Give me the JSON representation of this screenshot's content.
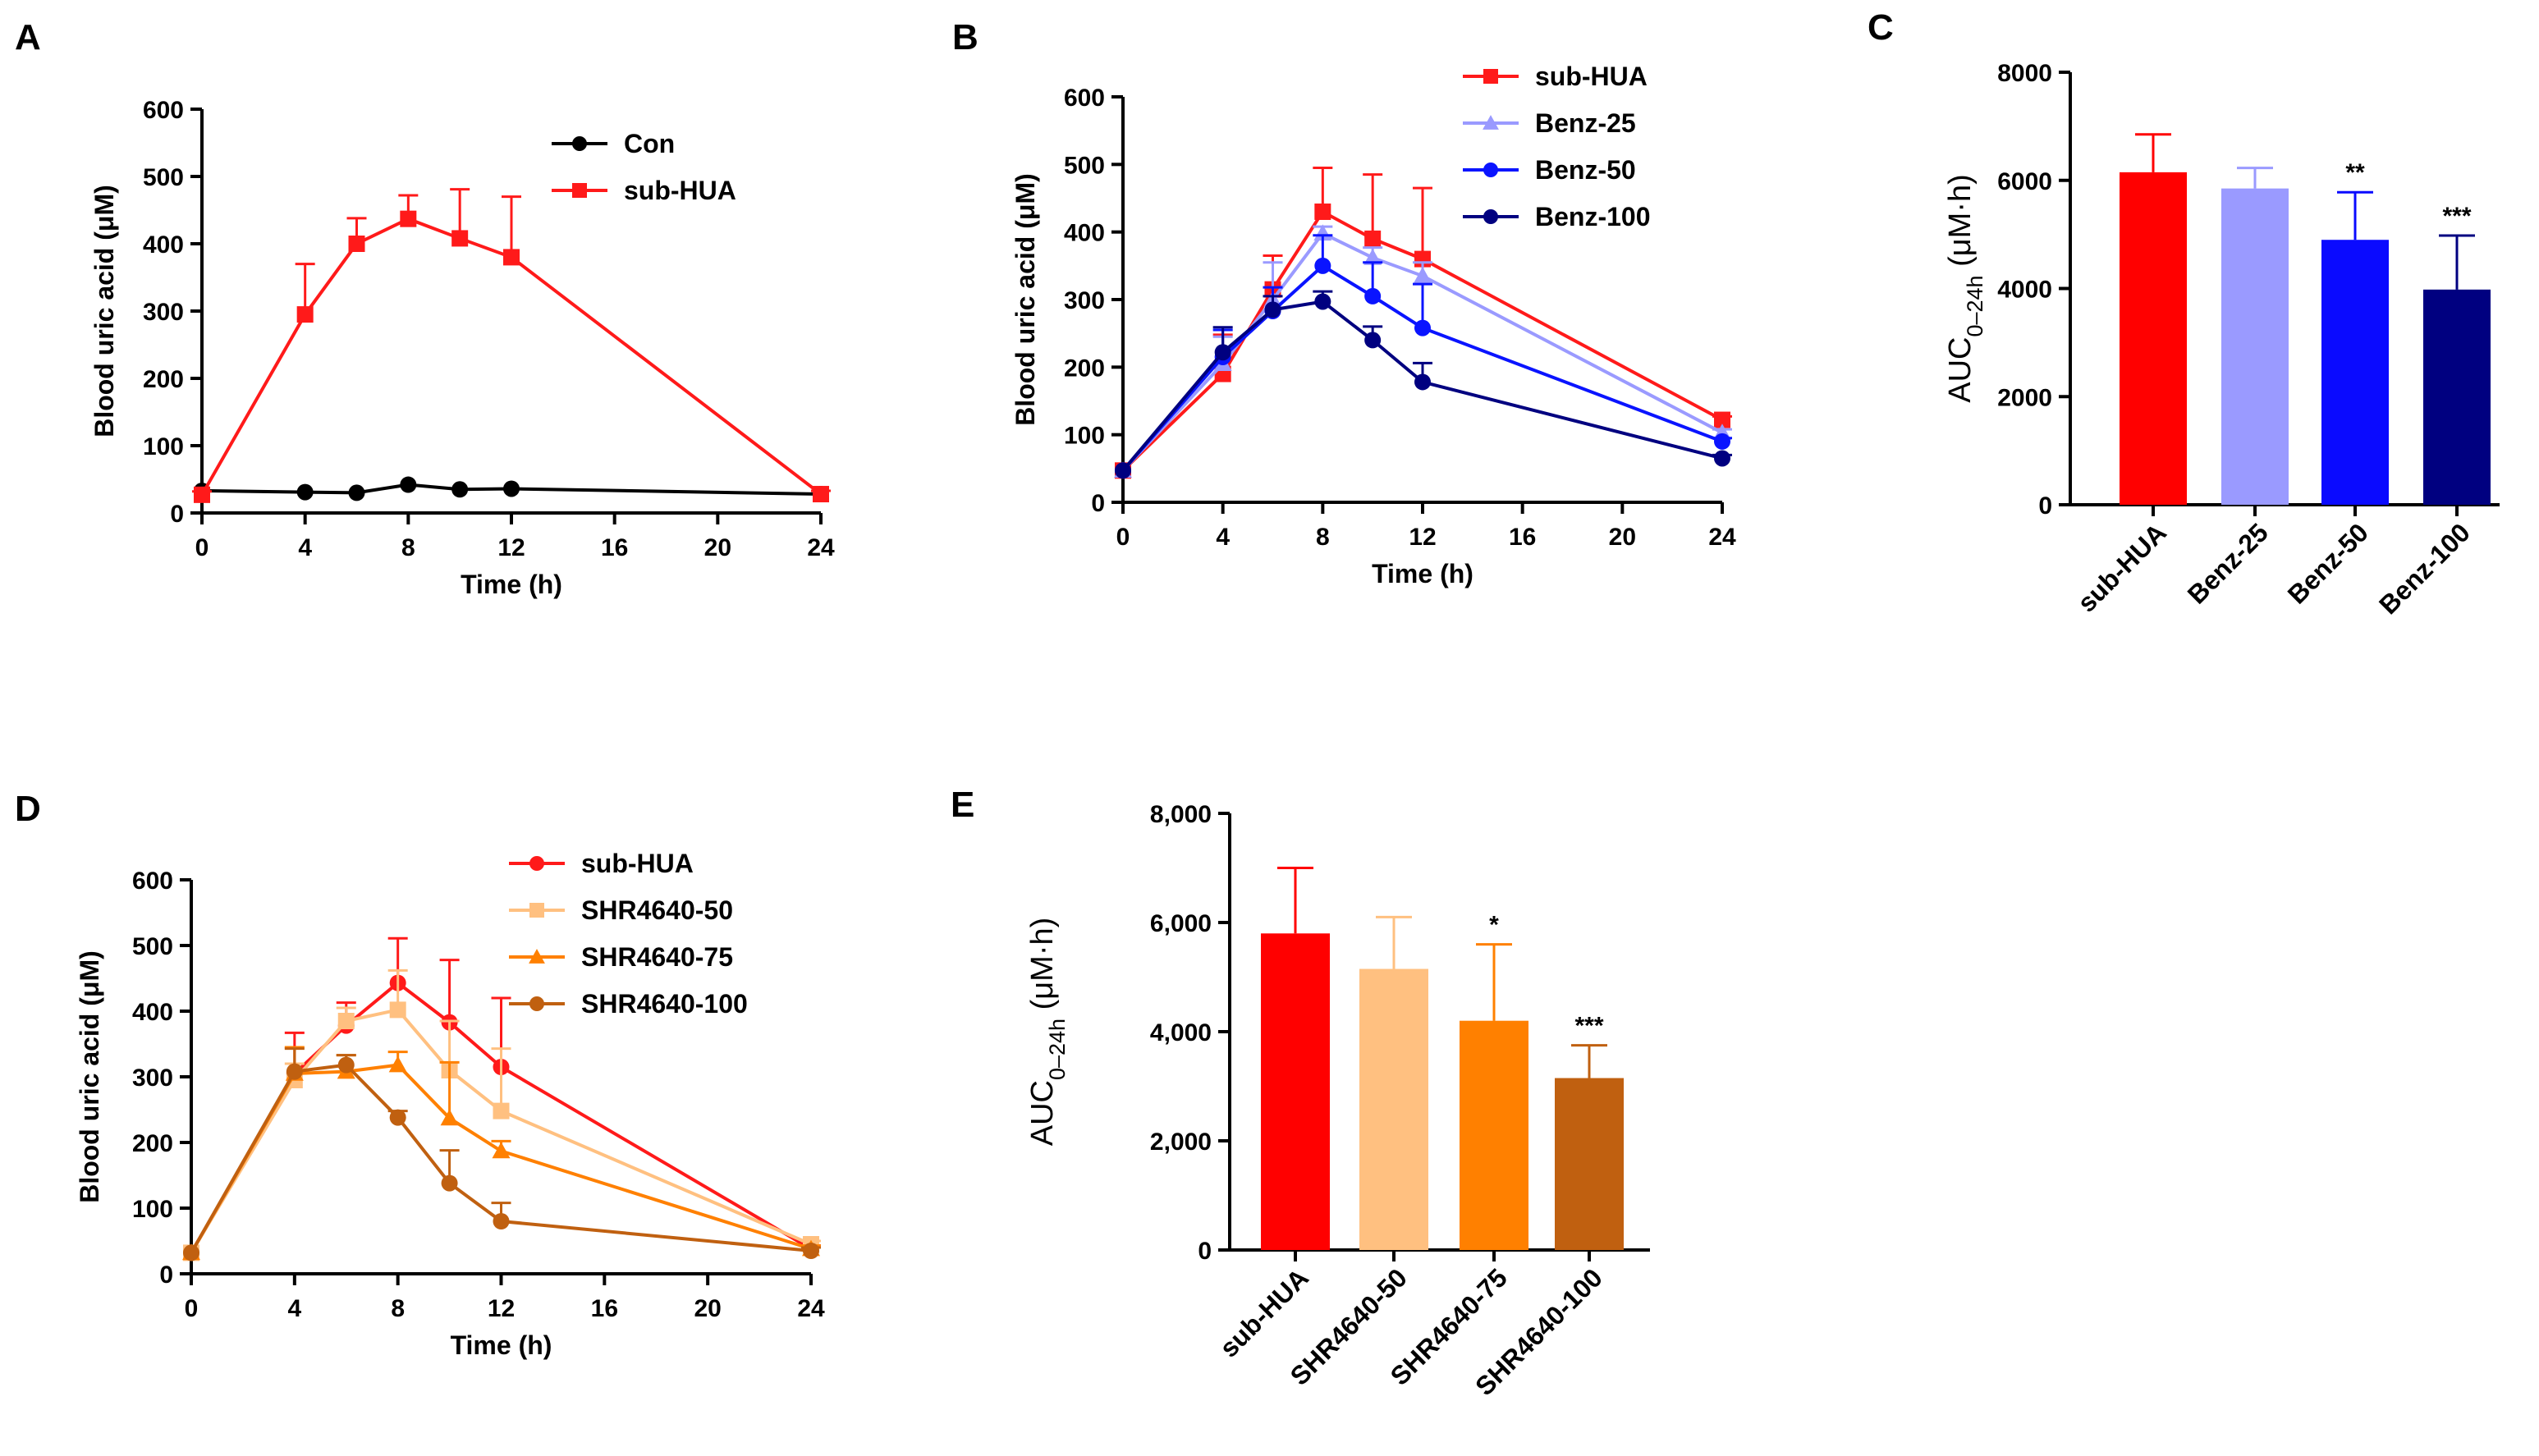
{
  "chart_data": [
    {
      "panel": "A",
      "type": "line",
      "xlabel": "Time (h)",
      "ylabel": "Blood uric acid (μM)",
      "xlim": [
        0,
        24
      ],
      "ylim": [
        0,
        600
      ],
      "xticks": [
        0,
        4,
        8,
        12,
        16,
        20,
        24
      ],
      "yticks": [
        0,
        100,
        200,
        300,
        400,
        500,
        600
      ],
      "legend_position": "top-right",
      "series": [
        {
          "name": "Con",
          "color": "#000000",
          "marker": "circle",
          "x": [
            0,
            4,
            6,
            8,
            10,
            12,
            24
          ],
          "y": [
            33,
            31,
            30,
            42,
            35,
            36,
            28
          ],
          "err": [
            3,
            3,
            3,
            4,
            3,
            3,
            3
          ]
        },
        {
          "name": "sub-HUA",
          "color": "#ff1a1a",
          "marker": "square",
          "x": [
            0,
            4,
            6,
            8,
            10,
            12,
            24
          ],
          "y": [
            27,
            295,
            400,
            437,
            408,
            380,
            28
          ],
          "err": [
            5,
            75,
            38,
            35,
            73,
            90,
            5
          ]
        }
      ]
    },
    {
      "panel": "B",
      "type": "line",
      "xlabel": "Time (h)",
      "ylabel": "Blood uric acid (μM)",
      "xlim": [
        0,
        24
      ],
      "ylim": [
        0,
        600
      ],
      "xticks": [
        0,
        4,
        8,
        12,
        16,
        20,
        24
      ],
      "yticks": [
        0,
        100,
        200,
        300,
        400,
        500,
        600
      ],
      "legend_position": "top-right",
      "series": [
        {
          "name": "sub-HUA",
          "color": "#ff1a1a",
          "marker": "square",
          "x": [
            0,
            4,
            6,
            8,
            10,
            12,
            24
          ],
          "y": [
            47,
            190,
            315,
            430,
            390,
            360,
            122
          ],
          "err": [
            3,
            58,
            50,
            65,
            95,
            105,
            5
          ]
        },
        {
          "name": "Benz-25",
          "color": "#9a9aff",
          "marker": "triangle",
          "x": [
            0,
            4,
            6,
            8,
            10,
            12,
            24
          ],
          "y": [
            47,
            205,
            300,
            398,
            362,
            335,
            103
          ],
          "err": [
            3,
            40,
            55,
            10,
            15,
            20,
            5
          ]
        },
        {
          "name": "Benz-50",
          "color": "#0a14ff",
          "marker": "circle",
          "x": [
            0,
            4,
            6,
            8,
            10,
            12,
            24
          ],
          "y": [
            47,
            215,
            283,
            350,
            305,
            258,
            90
          ],
          "err": [
            3,
            40,
            35,
            45,
            50,
            65,
            5
          ]
        },
        {
          "name": "Benz-100",
          "color": "#000080",
          "marker": "circle",
          "x": [
            0,
            4,
            6,
            8,
            10,
            12,
            24
          ],
          "y": [
            47,
            222,
            285,
            297,
            240,
            178,
            65
          ],
          "err": [
            3,
            37,
            20,
            15,
            20,
            28,
            5
          ]
        }
      ]
    },
    {
      "panel": "C",
      "type": "bar",
      "ylabel_main": "AUC",
      "ylabel_sub": "0–24h",
      "ylabel_unit": " (μM·h)",
      "ylim": [
        0,
        8000
      ],
      "yticks": [
        "0",
        "2000",
        "4000",
        "6000",
        "8000"
      ],
      "ytick_values": [
        0,
        2000,
        4000,
        6000,
        8000
      ],
      "categories": [
        "sub-HUA",
        "Benz-25",
        "Benz-50",
        "Benz-100"
      ],
      "values": [
        6150,
        5850,
        4900,
        3980
      ],
      "errors": [
        700,
        380,
        880,
        1000
      ],
      "colors": [
        "#ff0000",
        "#9a9aff",
        "#0a0aff",
        "#000080"
      ],
      "significance": [
        "",
        "",
        "**",
        "***"
      ]
    },
    {
      "panel": "D",
      "type": "line",
      "xlabel": "Time (h)",
      "ylabel": "Blood uric acid (μM)",
      "xlim": [
        0,
        24
      ],
      "ylim": [
        0,
        600
      ],
      "xticks": [
        0,
        4,
        8,
        12,
        16,
        20,
        24
      ],
      "yticks": [
        0,
        100,
        200,
        300,
        400,
        500,
        600
      ],
      "legend_position": "top-right",
      "series": [
        {
          "name": "sub-HUA",
          "color": "#ff1a1a",
          "marker": "circle",
          "x": [
            0,
            4,
            6,
            8,
            10,
            12,
            24
          ],
          "y": [
            32,
            305,
            378,
            443,
            383,
            315,
            38
          ],
          "err": [
            3,
            62,
            35,
            68,
            95,
            105,
            5
          ]
        },
        {
          "name": "SHR4640-50",
          "color": "#ffc080",
          "marker": "square",
          "x": [
            0,
            4,
            6,
            8,
            10,
            12,
            24
          ],
          "y": [
            32,
            295,
            385,
            402,
            310,
            248,
            45
          ],
          "err": [
            3,
            25,
            20,
            60,
            75,
            95,
            5
          ]
        },
        {
          "name": "SHR4640-75",
          "color": "#ff8000",
          "marker": "triangle",
          "x": [
            0,
            4,
            6,
            8,
            10,
            12,
            24
          ],
          "y": [
            32,
            305,
            308,
            318,
            237,
            187,
            38
          ],
          "err": [
            3,
            40,
            25,
            20,
            85,
            15,
            5
          ]
        },
        {
          "name": "SHR4640-100",
          "color": "#c06010",
          "marker": "circle",
          "x": [
            0,
            4,
            6,
            8,
            10,
            12,
            24
          ],
          "y": [
            32,
            308,
            318,
            238,
            138,
            80,
            35
          ],
          "err": [
            3,
            35,
            15,
            10,
            50,
            28,
            5
          ]
        }
      ]
    },
    {
      "panel": "E",
      "type": "bar",
      "ylabel_main": "AUC",
      "ylabel_sub": "0–24h",
      "ylabel_unit": " (μM·h)",
      "ylim": [
        0,
        8000
      ],
      "yticks": [
        "0",
        "2,000",
        "4,000",
        "6,000",
        "8,000"
      ],
      "ytick_values": [
        0,
        2000,
        4000,
        6000,
        8000
      ],
      "categories": [
        "sub-HUA",
        "SHR4640-50",
        "SHR4640-75",
        "SHR4640-100"
      ],
      "values": [
        5800,
        5150,
        4200,
        3150
      ],
      "errors": [
        1200,
        950,
        1400,
        600
      ],
      "colors": [
        "#ff0000",
        "#ffc080",
        "#ff8000",
        "#c06010"
      ],
      "significance": [
        "",
        "",
        "*",
        "***"
      ]
    }
  ]
}
